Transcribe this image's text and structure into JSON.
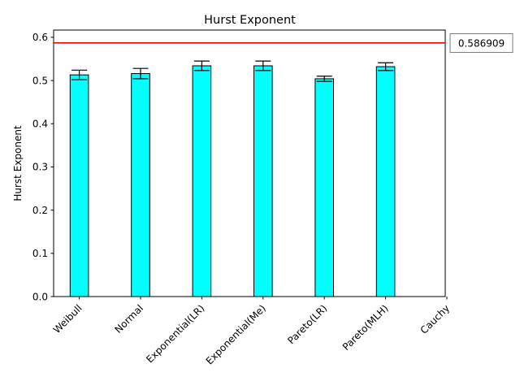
{
  "chart_data": {
    "type": "bar",
    "title": "Hurst Exponent",
    "xlabel": "",
    "ylabel": "Hurst Exponent",
    "categories": [
      "Weibull",
      "Normal",
      "Exponential(LR)",
      "Exponential(Me)",
      "Pareto(LR)",
      "Pareto(MLH)",
      "Cauchy"
    ],
    "values": [
      0.513,
      0.516,
      0.534,
      0.534,
      0.504,
      0.532,
      null
    ],
    "errors": [
      0.011,
      0.012,
      0.011,
      0.011,
      0.006,
      0.009,
      null
    ],
    "ylim": [
      0,
      0.6167
    ],
    "yticks": [
      "0.0",
      "0.1",
      "0.2",
      "0.3",
      "0.4",
      "0.5",
      "0.6"
    ],
    "reference_line": {
      "value": 0.586909,
      "label": "0.586909",
      "color": "#ff0000"
    },
    "grid": false,
    "bar_color": "#00ffff",
    "edge_color": "#000000"
  }
}
